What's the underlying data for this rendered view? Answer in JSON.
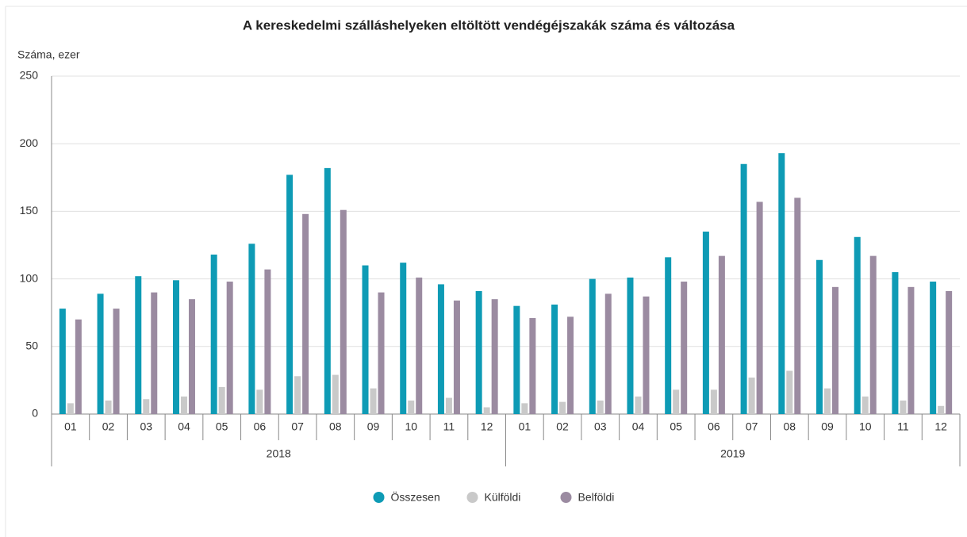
{
  "chart_data": {
    "type": "bar",
    "title": "A kereskedelmi szálláshelyeken eltöltött vendégéjszakák száma és változása",
    "y_label": "Száma, ezer",
    "categories": [
      "01",
      "02",
      "03",
      "04",
      "05",
      "06",
      "07",
      "08",
      "09",
      "10",
      "11",
      "12",
      "01",
      "02",
      "03",
      "04",
      "05",
      "06",
      "07",
      "08",
      "09",
      "10",
      "11",
      "12"
    ],
    "x_groups": [
      "2018",
      "2019"
    ],
    "series": [
      {
        "name": "Összesen",
        "color": "#0e9bb5",
        "values": [
          78,
          89,
          102,
          99,
          118,
          126,
          177,
          182,
          110,
          112,
          96,
          91,
          80,
          81,
          100,
          101,
          116,
          135,
          185,
          193,
          114,
          131,
          105,
          98
        ]
      },
      {
        "name": "Külföldi",
        "color": "#c9c9c9",
        "values": [
          8,
          10,
          11,
          13,
          20,
          18,
          28,
          29,
          19,
          10,
          12,
          5,
          8,
          9,
          10,
          13,
          18,
          18,
          27,
          32,
          19,
          13,
          10,
          6
        ]
      },
      {
        "name": "Belföldi",
        "color": "#9b8ba1",
        "values": [
          70,
          78,
          90,
          85,
          98,
          107,
          148,
          151,
          90,
          101,
          84,
          85,
          71,
          72,
          89,
          87,
          98,
          117,
          157,
          160,
          94,
          117,
          94,
          91
        ]
      }
    ],
    "ylim": [
      0,
      250
    ],
    "yticks": [
      0,
      50,
      100,
      150,
      200,
      250
    ],
    "grid": true,
    "legend": "bottom"
  }
}
